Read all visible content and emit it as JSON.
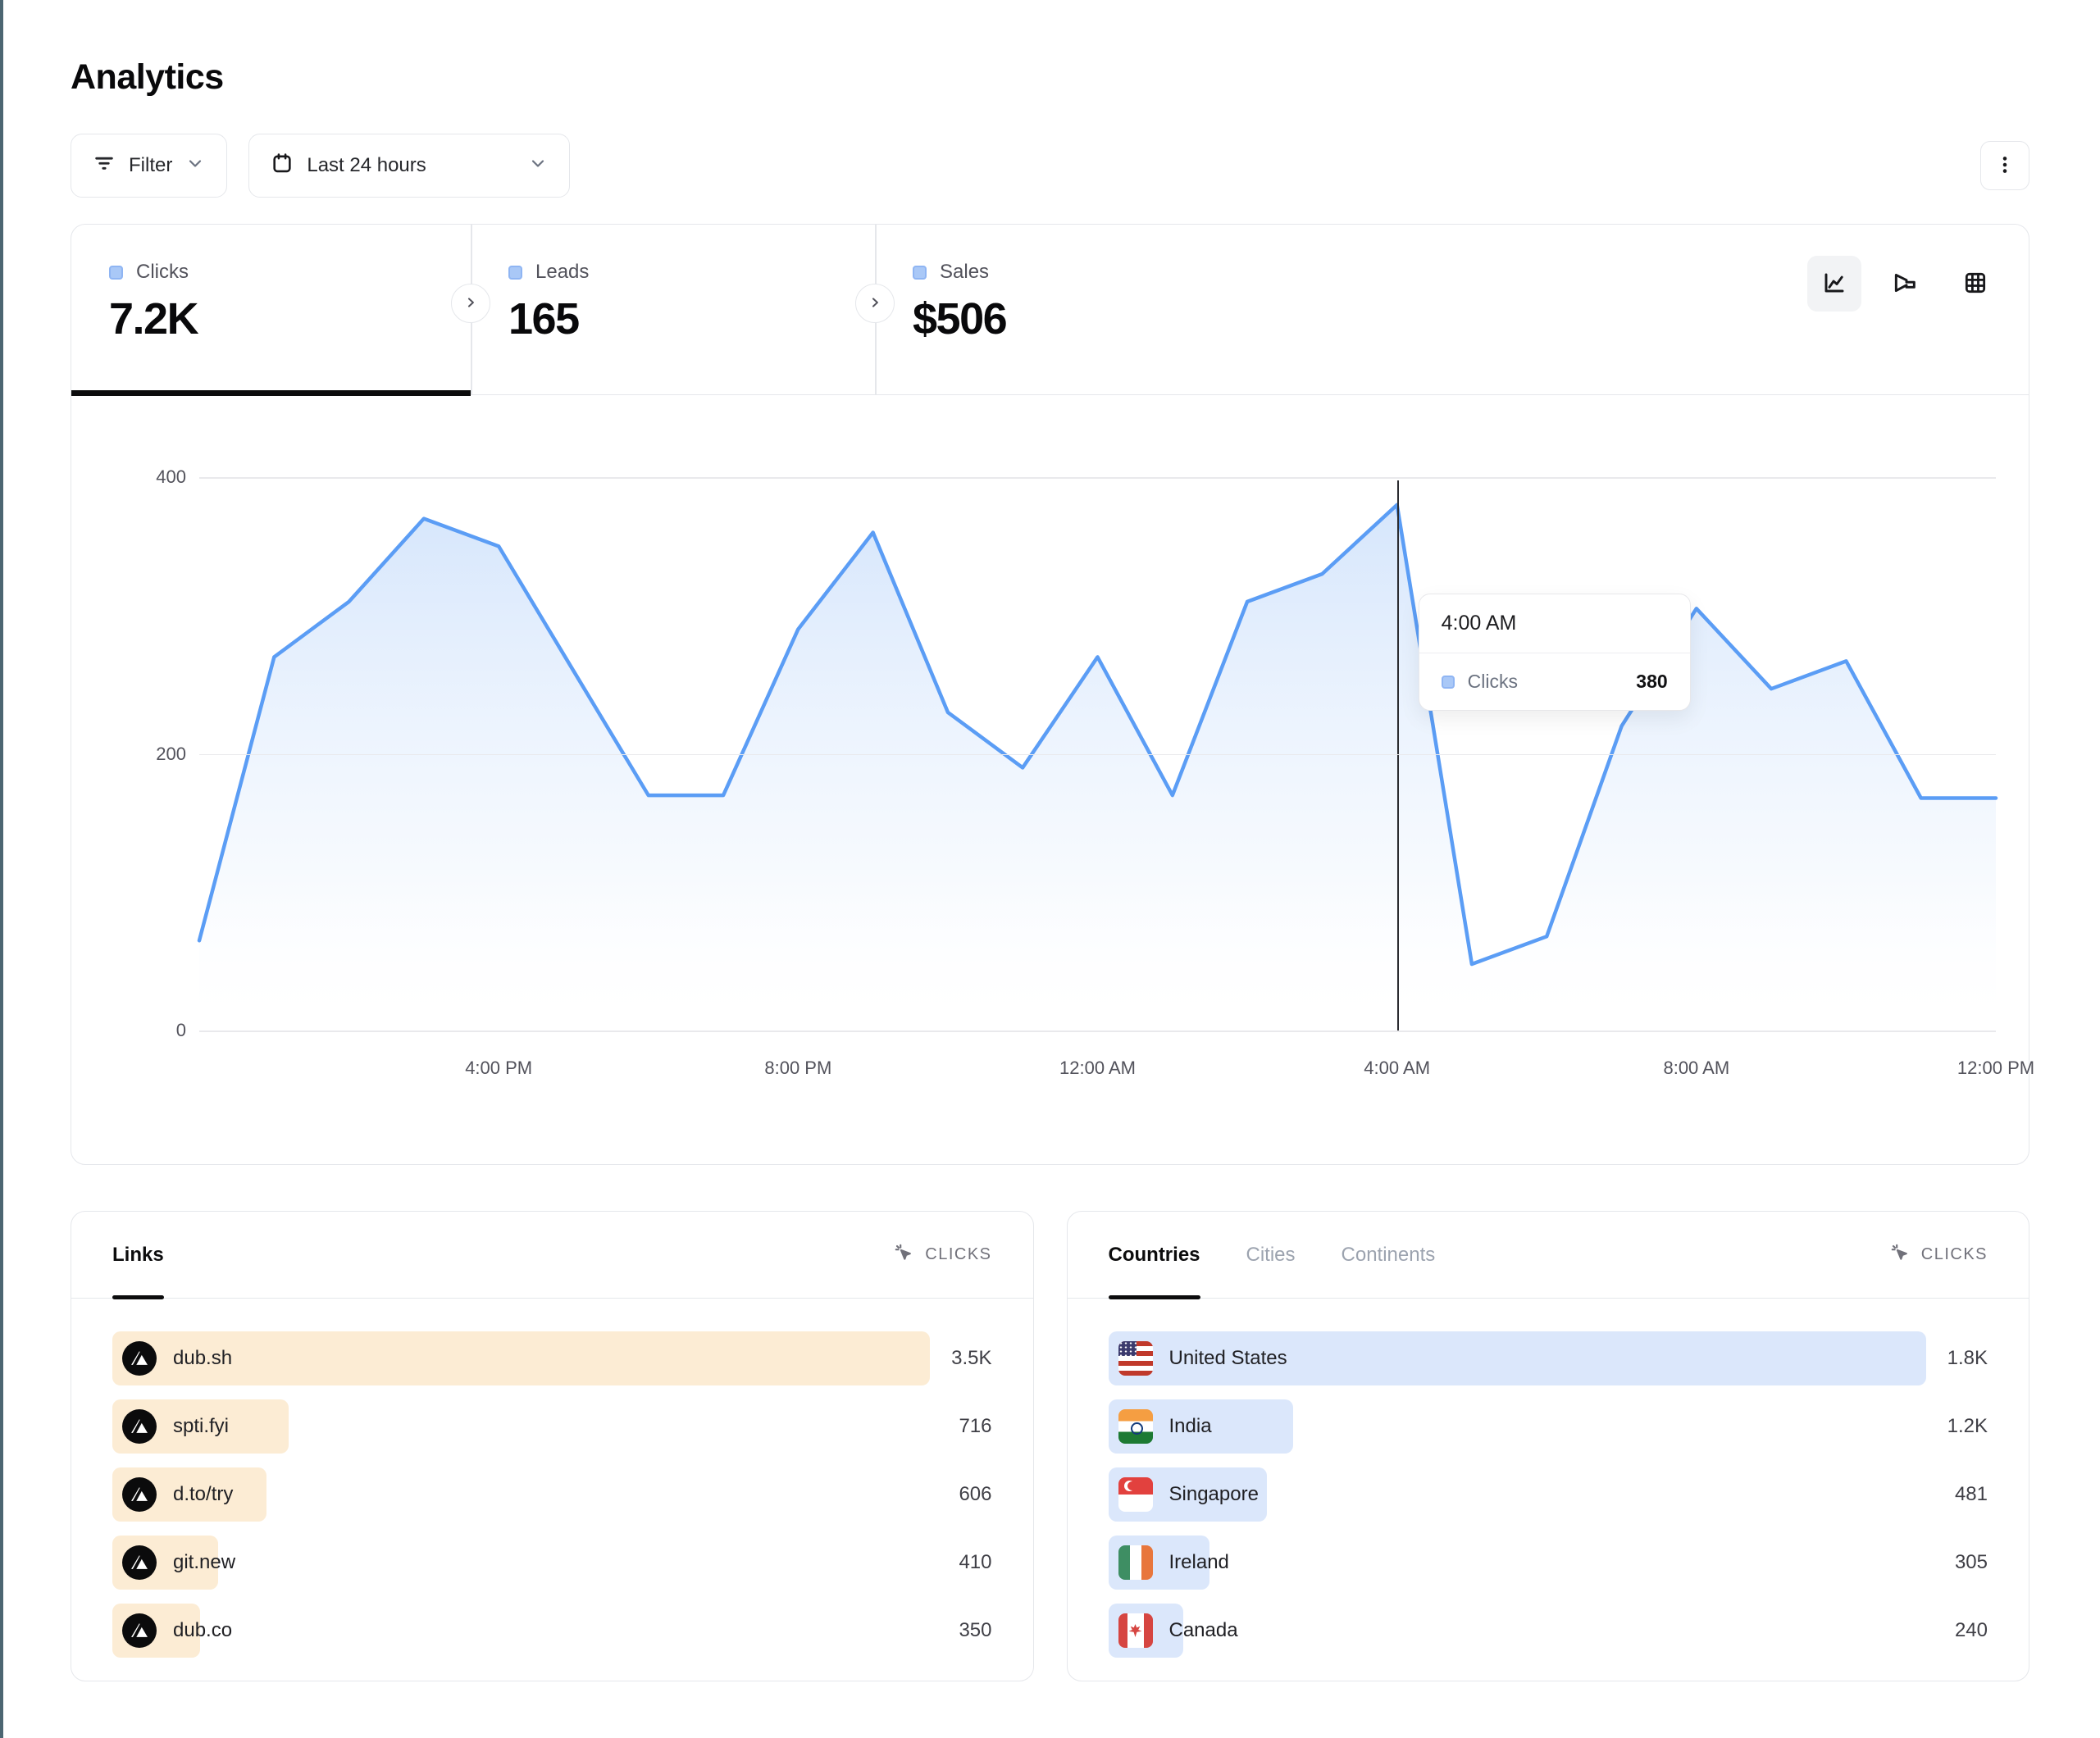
{
  "page": {
    "title": "Analytics"
  },
  "toolbar": {
    "filter_label": "Filter",
    "date_range_label": "Last 24 hours"
  },
  "icons": {
    "toolbar": [
      "filter-icon",
      "calendar-icon",
      "chevron-down-icon",
      "kebab-menu-icon"
    ],
    "chart_toggles": [
      "line-chart-icon",
      "funnel-chart-icon",
      "table-grid-icon"
    ],
    "stat_nav": "chevron-right-icon",
    "metric": "cursor-click-icon",
    "link_favicon": "dub-logo-icon"
  },
  "colors": {
    "accent_blue_line": "#5b9df5",
    "marker_fill": "#a9c8f7",
    "links_bar": "#fcecd4",
    "geo_bar": "#dbe7fb",
    "left_edge_strip": "#4c6672"
  },
  "stats": [
    {
      "label": "Clicks",
      "value": "7.2K",
      "active": true
    },
    {
      "label": "Leads",
      "value": "165",
      "active": false
    },
    {
      "label": "Sales",
      "value": "$506",
      "active": false
    }
  ],
  "chart_data": {
    "type": "area",
    "title": "Clicks over the last 24 hours",
    "series_name": "Clicks",
    "x": [
      "12:00 PM",
      "1:00 PM",
      "2:00 PM",
      "3:00 PM",
      "4:00 PM",
      "5:00 PM",
      "6:00 PM",
      "7:00 PM",
      "8:00 PM",
      "9:00 PM",
      "10:00 PM",
      "11:00 PM",
      "12:00 AM",
      "1:00 AM",
      "2:00 AM",
      "3:00 AM",
      "4:00 AM",
      "5:00 AM",
      "6:00 AM",
      "7:00 AM",
      "8:00 AM",
      "9:00 AM",
      "10:00 AM",
      "11:00 AM",
      "12:00 PM"
    ],
    "values": [
      65,
      270,
      310,
      370,
      350,
      260,
      170,
      170,
      290,
      360,
      230,
      190,
      270,
      170,
      310,
      330,
      380,
      48,
      68,
      220,
      305,
      247,
      267,
      168,
      168
    ],
    "ylim": [
      0,
      400
    ],
    "y_ticks": [
      400,
      200,
      0
    ],
    "x_ticks": [
      {
        "label": "4:00 PM",
        "index": 4
      },
      {
        "label": "8:00 PM",
        "index": 8
      },
      {
        "label": "12:00 AM",
        "index": 12
      },
      {
        "label": "4:00 AM",
        "index": 16
      },
      {
        "label": "8:00 AM",
        "index": 20
      },
      {
        "label": "12:00 PM",
        "index": 24
      }
    ],
    "grid": "horizontal",
    "legend": "none",
    "crosshair_index": 16,
    "tooltip": {
      "time": "4:00 AM",
      "series": "Clicks",
      "value": "380"
    }
  },
  "links_panel": {
    "tab_label": "Links",
    "metric_label": "CLICKS",
    "rows": [
      {
        "label": "dub.sh",
        "value": "3.5K",
        "bar_pct": 93
      },
      {
        "label": "spti.fyi",
        "value": "716",
        "bar_pct": 20
      },
      {
        "label": "d.to/try",
        "value": "606",
        "bar_pct": 17.5
      },
      {
        "label": "git.new",
        "value": "410",
        "bar_pct": 12
      },
      {
        "label": "dub.co",
        "value": "350",
        "bar_pct": 10
      }
    ]
  },
  "geo_panel": {
    "tabs": [
      {
        "label": "Countries",
        "active": true
      },
      {
        "label": "Cities",
        "active": false
      },
      {
        "label": "Continents",
        "active": false
      }
    ],
    "metric_label": "CLICKS",
    "rows": [
      {
        "label": "United States",
        "flag": "us",
        "value": "1.8K",
        "bar_pct": 93
      },
      {
        "label": "India",
        "flag": "in",
        "value": "1.2K",
        "bar_pct": 21
      },
      {
        "label": "Singapore",
        "flag": "sg",
        "value": "481",
        "bar_pct": 18
      },
      {
        "label": "Ireland",
        "flag": "ie",
        "value": "305",
        "bar_pct": 11.5
      },
      {
        "label": "Canada",
        "flag": "ca",
        "value": "240",
        "bar_pct": 8.5
      }
    ]
  }
}
